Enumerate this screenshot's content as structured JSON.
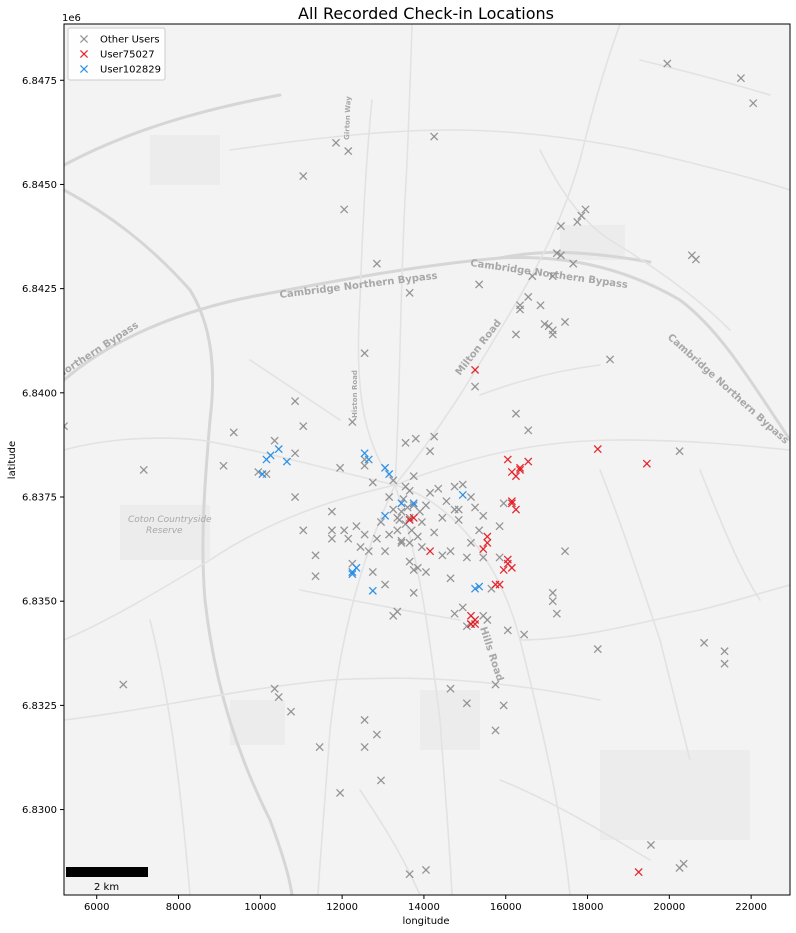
{
  "chart_data": {
    "type": "scatter",
    "title": "All Recorded Check-in Locations",
    "xlabel": "longitude",
    "ylabel": "latitude",
    "y_offset_label": "1e6",
    "xlim": [
      5200,
      22950
    ],
    "ylim": [
      6827950,
      6848850
    ],
    "x_ticks": [
      6000,
      8000,
      10000,
      12000,
      14000,
      16000,
      18000,
      20000,
      22000
    ],
    "x_tick_labels": [
      "6000",
      "8000",
      "10000",
      "12000",
      "14000",
      "16000",
      "18000",
      "20000",
      "22000"
    ],
    "y_ticks": [
      6830000,
      6832500,
      6835000,
      6837500,
      6840000,
      6842500,
      6845000,
      6847500
    ],
    "y_tick_labels": [
      "6.8300",
      "6.8325",
      "6.8350",
      "6.8375",
      "6.8400",
      "6.8425",
      "6.8450",
      "6.8475"
    ],
    "legend_position": "top-left",
    "basemap": "light gray street map",
    "scalebar_label": "2 km",
    "map_labels": {
      "bypass_1": "Cambridge Northern Bypass",
      "bypass_2": "Cambridge Northern Bypass",
      "bypass_3": "Cambridge Northern Bypass",
      "bypass_west": "Northern Bypass",
      "milton_road": "Milton Road",
      "histon_road": "Histon Road",
      "hills_road": "Hills Road",
      "gilbert_way": "Girton Way",
      "coton_1": "Coton Countryside",
      "coton_2": "Reserve"
    },
    "series": [
      {
        "name": "Other Users",
        "color": "#8c8c8c",
        "marker": "x",
        "points": [
          [
            5200,
            6839200
          ],
          [
            6650,
            6833000
          ],
          [
            7150,
            6838150
          ],
          [
            9100,
            6838250
          ],
          [
            9350,
            6839050
          ],
          [
            9950,
            6838100
          ],
          [
            10150,
            6838050
          ],
          [
            10350,
            6838850
          ],
          [
            10850,
            6838550
          ],
          [
            10850,
            6837500
          ],
          [
            10850,
            6839800
          ],
          [
            11050,
            6836700
          ],
          [
            11050,
            6839200
          ],
          [
            11050,
            6845200
          ],
          [
            10350,
            6832900
          ],
          [
            10450,
            6832700
          ],
          [
            10750,
            6832350
          ],
          [
            11350,
            6835600
          ],
          [
            11350,
            6836100
          ],
          [
            11450,
            6831500
          ],
          [
            11750,
            6836500
          ],
          [
            11750,
            6837150
          ],
          [
            11750,
            6836700
          ],
          [
            11950,
            6838200
          ],
          [
            12050,
            6844400
          ],
          [
            11950,
            6830400
          ],
          [
            12050,
            6836700
          ],
          [
            12150,
            6836500
          ],
          [
            12250,
            6839300
          ],
          [
            11850,
            6846000
          ],
          [
            12150,
            6845800
          ],
          [
            12250,
            6835900
          ],
          [
            12350,
            6836800
          ],
          [
            12450,
            6836300
          ],
          [
            12550,
            6836600
          ],
          [
            12550,
            6838250
          ],
          [
            12550,
            6838400
          ],
          [
            12550,
            6840950
          ],
          [
            12550,
            6832150
          ],
          [
            12550,
            6831500
          ],
          [
            12650,
            6836200
          ],
          [
            12750,
            6837850
          ],
          [
            12750,
            6835700
          ],
          [
            12850,
            6843100
          ],
          [
            12850,
            6836500
          ],
          [
            12850,
            6831800
          ],
          [
            12950,
            6836900
          ],
          [
            12950,
            6830700
          ],
          [
            13050,
            6836200
          ],
          [
            13050,
            6835400
          ],
          [
            13150,
            6837500
          ],
          [
            13150,
            6836600
          ],
          [
            13250,
            6837900
          ],
          [
            13250,
            6837200
          ],
          [
            13350,
            6837000
          ],
          [
            13350,
            6836700
          ],
          [
            13400,
            6836950
          ],
          [
            13450,
            6837150
          ],
          [
            13450,
            6836450
          ],
          [
            13500,
            6837450
          ],
          [
            13550,
            6837750
          ],
          [
            13550,
            6836850
          ],
          [
            13600,
            6837250
          ],
          [
            13650,
            6837000
          ],
          [
            13650,
            6836400
          ],
          [
            13650,
            6837650
          ],
          [
            13700,
            6836700
          ],
          [
            13750,
            6838000
          ],
          [
            13750,
            6837300
          ],
          [
            13800,
            6838900
          ],
          [
            13850,
            6836550
          ],
          [
            13900,
            6837150
          ],
          [
            13950,
            6836900
          ],
          [
            13550,
            6838800
          ],
          [
            13650,
            6842400
          ],
          [
            13650,
            6828450
          ],
          [
            13450,
            6836400
          ],
          [
            13350,
            6834750
          ],
          [
            13250,
            6834650
          ],
          [
            13650,
            6835950
          ],
          [
            13750,
            6835750
          ],
          [
            13750,
            6835200
          ],
          [
            13850,
            6835800
          ],
          [
            13950,
            6836300
          ],
          [
            14050,
            6835700
          ],
          [
            14050,
            6837300
          ],
          [
            14150,
            6837600
          ],
          [
            14150,
            6838600
          ],
          [
            14250,
            6836650
          ],
          [
            14250,
            6838950
          ],
          [
            14350,
            6837700
          ],
          [
            14450,
            6837000
          ],
          [
            14450,
            6836100
          ],
          [
            14550,
            6837400
          ],
          [
            14650,
            6836200
          ],
          [
            14650,
            6835550
          ],
          [
            14750,
            6834700
          ],
          [
            14750,
            6837200
          ],
          [
            14750,
            6837750
          ],
          [
            14850,
            6837200
          ],
          [
            14850,
            6836950
          ],
          [
            14950,
            6837800
          ],
          [
            14950,
            6834850
          ],
          [
            15050,
            6836050
          ],
          [
            15050,
            6834400
          ],
          [
            15150,
            6836400
          ],
          [
            15150,
            6837500
          ],
          [
            15150,
            6834450
          ],
          [
            15250,
            6837250
          ],
          [
            15250,
            6840150
          ],
          [
            15350,
            6836700
          ],
          [
            15350,
            6842600
          ],
          [
            15450,
            6836050
          ],
          [
            15450,
            6834650
          ],
          [
            15450,
            6837050
          ],
          [
            15550,
            6834550
          ],
          [
            15650,
            6835300
          ],
          [
            15750,
            6833000
          ],
          [
            15750,
            6831900
          ],
          [
            15850,
            6836800
          ],
          [
            15850,
            6836050
          ],
          [
            15950,
            6832500
          ],
          [
            15950,
            6837350
          ],
          [
            16050,
            6834300
          ],
          [
            16250,
            6839500
          ],
          [
            16250,
            6841400
          ],
          [
            16350,
            6842100
          ],
          [
            16350,
            6842000
          ],
          [
            16450,
            6834200
          ],
          [
            16550,
            6842300
          ],
          [
            16550,
            6839100
          ],
          [
            16650,
            6842800
          ],
          [
            16850,
            6842100
          ],
          [
            16950,
            6841650
          ],
          [
            17050,
            6841600
          ],
          [
            17150,
            6841500
          ],
          [
            17150,
            6841400
          ],
          [
            17150,
            6842800
          ],
          [
            17250,
            6843350
          ],
          [
            17350,
            6844000
          ],
          [
            17350,
            6843300
          ],
          [
            17450,
            6841700
          ],
          [
            17450,
            6836200
          ],
          [
            17150,
            6835200
          ],
          [
            17150,
            6835000
          ],
          [
            17250,
            6834700
          ],
          [
            17650,
            6843100
          ],
          [
            17750,
            6844100
          ],
          [
            17850,
            6844250
          ],
          [
            17950,
            6844400
          ],
          [
            18250,
            6833850
          ],
          [
            18550,
            6840800
          ],
          [
            19550,
            6829150
          ],
          [
            19950,
            6847900
          ],
          [
            20250,
            6838600
          ],
          [
            20250,
            6828600
          ],
          [
            20350,
            6828700
          ],
          [
            20550,
            6843300
          ],
          [
            20650,
            6843200
          ],
          [
            20850,
            6834000
          ],
          [
            21350,
            6833800
          ],
          [
            21350,
            6833500
          ],
          [
            21750,
            6847550
          ],
          [
            22050,
            6846950
          ],
          [
            14050,
            6828550
          ],
          [
            14650,
            6832900
          ],
          [
            15050,
            6832550
          ],
          [
            14250,
            6846150
          ]
        ]
      },
      {
        "name": "User75027",
        "color": "#e3171f",
        "marker": "x",
        "points": [
          [
            13650,
            6836950
          ],
          [
            13750,
            6837000
          ],
          [
            14150,
            6836200
          ],
          [
            15150,
            6834450
          ],
          [
            15150,
            6834650
          ],
          [
            15250,
            6834450
          ],
          [
            15250,
            6834550
          ],
          [
            15250,
            6840550
          ],
          [
            15450,
            6836250
          ],
          [
            15550,
            6836400
          ],
          [
            15550,
            6836550
          ],
          [
            15750,
            6835400
          ],
          [
            15850,
            6835400
          ],
          [
            15950,
            6835750
          ],
          [
            16050,
            6836000
          ],
          [
            16050,
            6835900
          ],
          [
            16150,
            6835800
          ],
          [
            16050,
            6838400
          ],
          [
            16150,
            6838100
          ],
          [
            16150,
            6837400
          ],
          [
            16150,
            6837350
          ],
          [
            16250,
            6837200
          ],
          [
            16250,
            6838000
          ],
          [
            16350,
            6838200
          ],
          [
            16350,
            6838150
          ],
          [
            16550,
            6838350
          ],
          [
            18250,
            6838650
          ],
          [
            19450,
            6838300
          ],
          [
            19250,
            6828500
          ]
        ]
      },
      {
        "name": "User102829",
        "color": "#1f8ae6",
        "marker": "x",
        "points": [
          [
            10050,
            6838050
          ],
          [
            10150,
            6838400
          ],
          [
            10250,
            6838500
          ],
          [
            10450,
            6838650
          ],
          [
            10650,
            6838350
          ],
          [
            12250,
            6835650
          ],
          [
            12250,
            6835700
          ],
          [
            12350,
            6835800
          ],
          [
            12550,
            6838550
          ],
          [
            12650,
            6838400
          ],
          [
            12750,
            6835250
          ],
          [
            13050,
            6837050
          ],
          [
            13050,
            6838200
          ],
          [
            13150,
            6838050
          ],
          [
            13450,
            6837350
          ],
          [
            13750,
            6837350
          ],
          [
            14950,
            6837550
          ],
          [
            15250,
            6835300
          ],
          [
            15350,
            6835350
          ]
        ]
      }
    ]
  }
}
